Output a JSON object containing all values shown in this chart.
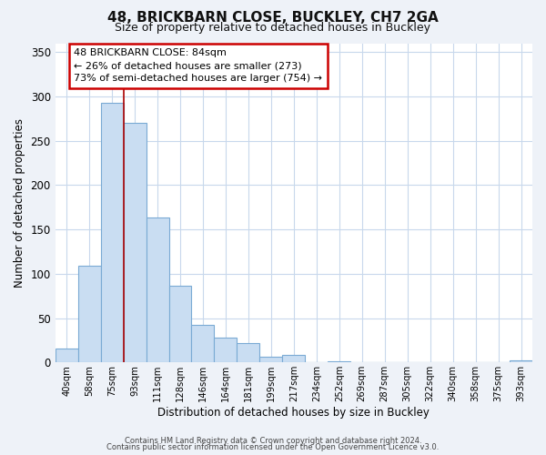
{
  "title": "48, BRICKBARN CLOSE, BUCKLEY, CH7 2GA",
  "subtitle": "Size of property relative to detached houses in Buckley",
  "xlabel": "Distribution of detached houses by size in Buckley",
  "ylabel": "Number of detached properties",
  "bar_labels": [
    "40sqm",
    "58sqm",
    "75sqm",
    "93sqm",
    "111sqm",
    "128sqm",
    "146sqm",
    "164sqm",
    "181sqm",
    "199sqm",
    "217sqm",
    "234sqm",
    "252sqm",
    "269sqm",
    "287sqm",
    "305sqm",
    "322sqm",
    "340sqm",
    "358sqm",
    "375sqm",
    "393sqm"
  ],
  "bar_values": [
    16,
    109,
    293,
    270,
    163,
    86,
    42,
    28,
    22,
    6,
    8,
    0,
    1,
    0,
    0,
    0,
    0,
    0,
    0,
    0,
    2
  ],
  "bar_color": "#c9ddf2",
  "bar_edge_color": "#7aaad4",
  "ylim": [
    0,
    360
  ],
  "yticks": [
    0,
    50,
    100,
    150,
    200,
    250,
    300,
    350
  ],
  "property_line_color": "#aa0000",
  "annotation_title": "48 BRICKBARN CLOSE: 84sqm",
  "annotation_line1": "← 26% of detached houses are smaller (273)",
  "annotation_line2": "73% of semi-detached houses are larger (754) →",
  "annotation_box_color": "#ffffff",
  "annotation_box_edge": "#cc0000",
  "footer_line1": "Contains HM Land Registry data © Crown copyright and database right 2024.",
  "footer_line2": "Contains public sector information licensed under the Open Government Licence v3.0.",
  "background_color": "#eef2f8",
  "plot_background_color": "#ffffff",
  "grid_color": "#c8d8ec"
}
